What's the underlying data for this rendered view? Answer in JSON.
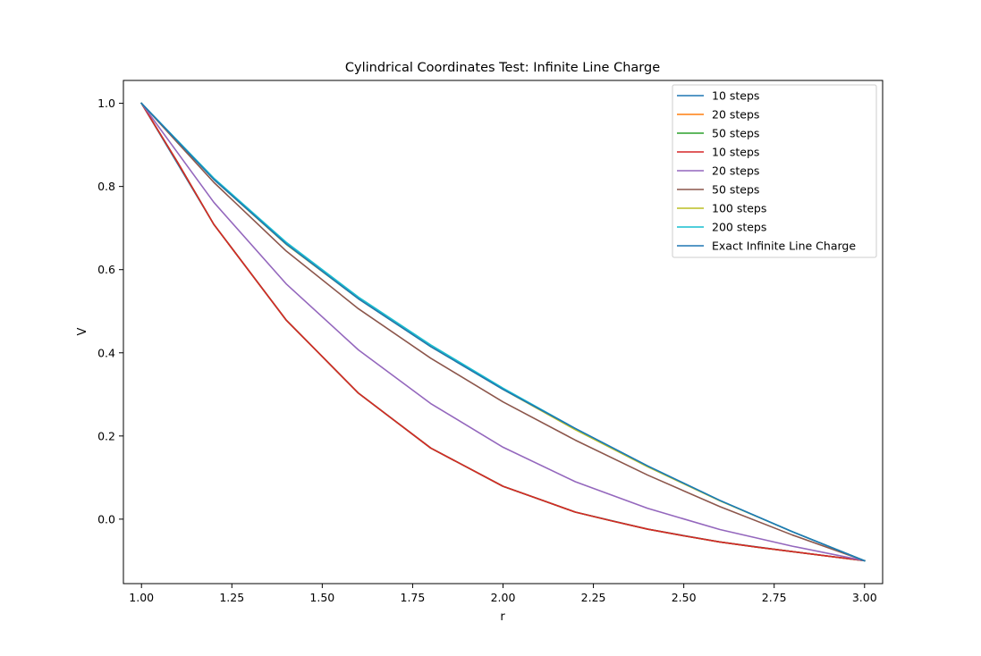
{
  "chart_data": {
    "type": "line",
    "title": "Cylindrical Coordinates Test: Infinite Line Charge",
    "xlabel": "r",
    "ylabel": "V",
    "xlim": [
      0.95,
      3.05
    ],
    "ylim": [
      -0.155,
      1.055
    ],
    "xticks": [
      "1.00",
      "1.25",
      "1.50",
      "1.75",
      "2.00",
      "2.25",
      "2.50",
      "2.75",
      "3.00"
    ],
    "yticks": [
      "0.0",
      "0.2",
      "0.4",
      "0.6",
      "0.8",
      "1.0"
    ],
    "grid": false,
    "legend_position": "top-right",
    "series": [
      {
        "name": "10 steps",
        "color": "#1f77b4",
        "x": [
          1.0,
          1.2,
          1.4,
          1.6,
          1.8,
          2.0,
          2.2,
          2.4,
          2.6,
          2.8,
          3.0
        ],
        "y": [
          1.0,
          0.709,
          0.479,
          0.303,
          0.171,
          0.079,
          0.017,
          -0.024,
          -0.055,
          -0.078,
          -0.1
        ]
      },
      {
        "name": "20 steps",
        "color": "#ff7f0e",
        "x": [
          1.0,
          1.1,
          1.2,
          1.3,
          1.4,
          1.5,
          1.6,
          1.7,
          1.8,
          1.9,
          2.0,
          2.1,
          2.2,
          2.3,
          2.4,
          2.5,
          2.6,
          2.7,
          2.8,
          2.9,
          3.0
        ],
        "y": [
          1.0,
          0.858,
          0.709,
          0.594,
          0.479,
          0.391,
          0.303,
          0.237,
          0.171,
          0.125,
          0.079,
          0.048,
          0.017,
          -0.004,
          -0.024,
          -0.04,
          -0.055,
          -0.067,
          -0.078,
          -0.089,
          -0.1
        ]
      },
      {
        "name": "50 steps",
        "color": "#2ca02c",
        "x": [
          1.0,
          1.1,
          1.2,
          1.3,
          1.4,
          1.5,
          1.6,
          1.7,
          1.8,
          1.9,
          2.0,
          2.1,
          2.2,
          2.3,
          2.4,
          2.5,
          2.6,
          2.7,
          2.8,
          2.9,
          3.0
        ],
        "y": [
          1.0,
          0.858,
          0.709,
          0.594,
          0.479,
          0.391,
          0.303,
          0.237,
          0.171,
          0.125,
          0.079,
          0.048,
          0.017,
          -0.004,
          -0.024,
          -0.04,
          -0.055,
          -0.067,
          -0.078,
          -0.089,
          -0.1
        ]
      },
      {
        "name": "10 steps",
        "color": "#d62728",
        "x": [
          1.0,
          1.1,
          1.2,
          1.3,
          1.4,
          1.5,
          1.6,
          1.7,
          1.8,
          1.9,
          2.0,
          2.1,
          2.2,
          2.3,
          2.4,
          2.5,
          2.6,
          2.7,
          2.8,
          2.9,
          3.0
        ],
        "y": [
          1.0,
          0.858,
          0.709,
          0.594,
          0.479,
          0.391,
          0.303,
          0.237,
          0.171,
          0.125,
          0.079,
          0.048,
          0.017,
          -0.004,
          -0.024,
          -0.04,
          -0.055,
          -0.067,
          -0.078,
          -0.089,
          -0.1
        ]
      },
      {
        "name": "20 steps",
        "color": "#9467bd",
        "x": [
          1.0,
          1.2,
          1.4,
          1.6,
          1.8,
          2.0,
          2.2,
          2.4,
          2.6,
          2.8,
          3.0
        ],
        "y": [
          1.0,
          0.762,
          0.566,
          0.407,
          0.278,
          0.173,
          0.09,
          0.026,
          -0.025,
          -0.065,
          -0.1
        ]
      },
      {
        "name": "50 steps",
        "color": "#8c564b",
        "x": [
          1.0,
          1.2,
          1.4,
          1.6,
          1.8,
          2.0,
          2.2,
          2.4,
          2.6,
          2.8,
          3.0
        ],
        "y": [
          1.0,
          0.81,
          0.645,
          0.506,
          0.387,
          0.282,
          0.19,
          0.106,
          0.03,
          -0.038,
          -0.1
        ]
      },
      {
        "name": "100 steps",
        "color": "#bcbd22",
        "x": [
          1.0,
          1.2,
          1.4,
          1.6,
          1.8,
          2.0,
          2.2,
          2.4,
          2.6,
          2.8,
          3.0
        ],
        "y": [
          1.0,
          0.817,
          0.661,
          0.53,
          0.415,
          0.312,
          0.215,
          0.126,
          0.044,
          -0.03,
          -0.1
        ]
      },
      {
        "name": "200 steps",
        "color": "#17becf",
        "x": [
          1.0,
          1.2,
          1.4,
          1.6,
          1.8,
          2.0,
          2.2,
          2.4,
          2.6,
          2.8,
          3.0
        ],
        "y": [
          1.0,
          0.82,
          0.666,
          0.534,
          0.419,
          0.315,
          0.218,
          0.128,
          0.045,
          -0.03,
          -0.1
        ]
      },
      {
        "name": "Exact Infinite Line Charge",
        "color": "#1f77b4",
        "x": [
          1.0,
          1.2,
          1.4,
          1.6,
          1.8,
          2.0,
          2.2,
          2.4,
          2.6,
          2.8,
          3.0
        ],
        "y": [
          1.0,
          0.817,
          0.662,
          0.53,
          0.415,
          0.312,
          0.218,
          0.128,
          0.045,
          -0.03,
          -0.1
        ]
      }
    ]
  }
}
